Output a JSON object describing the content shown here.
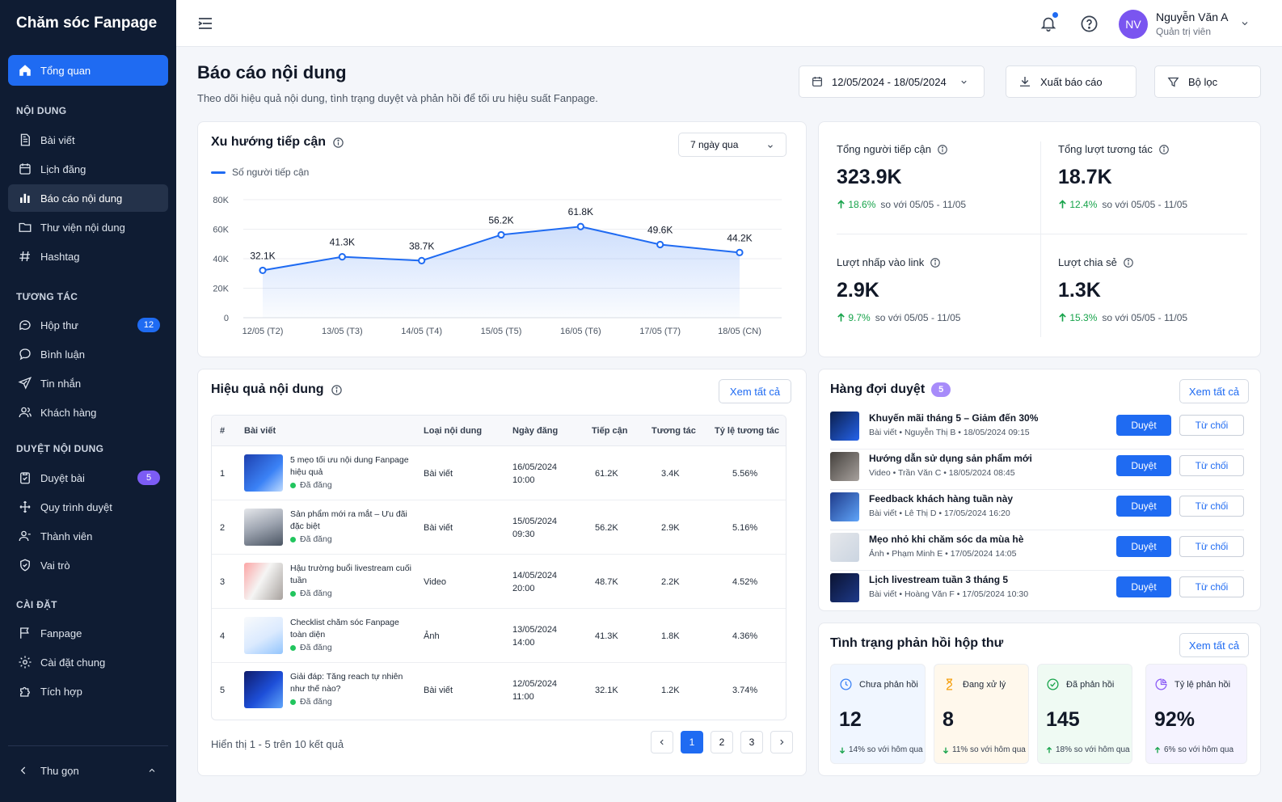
{
  "sidebar": {
    "brand": "Chăm sóc Fanpage",
    "top_item": "Tổng quan",
    "sections": [
      {
        "title": "NỘI DUNG",
        "items": [
          {
            "label": "Bài viết",
            "icon": "document-icon"
          },
          {
            "label": "Lịch đăng",
            "icon": "calendar-icon"
          },
          {
            "label": "Báo cáo nội dung",
            "icon": "bar-chart-icon",
            "active": true
          },
          {
            "label": "Thư viện nội dung",
            "icon": "folder-icon"
          },
          {
            "label": "Hashtag",
            "icon": "hashtag-icon"
          }
        ]
      },
      {
        "title": "TƯƠNG TÁC",
        "items": [
          {
            "label": "Hộp thư",
            "icon": "inbox-icon",
            "badge": "12"
          },
          {
            "label": "Bình luận",
            "icon": "comment-icon"
          },
          {
            "label": "Tin nhắn",
            "icon": "send-icon"
          },
          {
            "label": "Khách hàng",
            "icon": "users-icon"
          }
        ]
      },
      {
        "title": "DUYỆT NỘI DUNG",
        "items": [
          {
            "label": "Duyệt bài",
            "icon": "clipboard-check-icon",
            "badge": "5"
          },
          {
            "label": "Quy trình duyệt",
            "icon": "workflow-icon"
          },
          {
            "label": "Thành viên",
            "icon": "members-icon"
          },
          {
            "label": "Vai trò",
            "icon": "shield-icon"
          }
        ]
      },
      {
        "title": "CÀI ĐẶT",
        "items": [
          {
            "label": "Fanpage",
            "icon": "flag-icon"
          },
          {
            "label": "Cài đặt chung",
            "icon": "gear-icon"
          },
          {
            "label": "Tích hợp",
            "icon": "puzzle-icon"
          }
        ]
      }
    ],
    "collapse": "Thu gọn"
  },
  "header": {
    "user_initials": "NV",
    "user_name": "Nguyễn Văn A",
    "user_role": "Quản trị viên"
  },
  "page": {
    "title": "Báo cáo nội dung",
    "subtitle": "Theo dõi hiệu quả nội dung, tình trạng duyệt và phản hồi để tối ưu hiệu suất Fanpage.",
    "date_range": "12/05/2024 - 18/05/2024",
    "export": "Xuất báo cáo",
    "filter": "Bộ lọc"
  },
  "reach_card": {
    "title": "Xu hướng tiếp cận",
    "period": "7 ngày qua"
  },
  "chart_data": {
    "type": "area",
    "series": [
      {
        "name": "Số người tiếp cận",
        "values": [
          32.1,
          41.3,
          38.7,
          56.2,
          61.8,
          49.6,
          44.2
        ]
      }
    ],
    "categories": [
      "12/05 (T2)",
      "13/05 (T3)",
      "14/05 (T4)",
      "15/05 (T5)",
      "16/05 (T6)",
      "17/05 (T7)",
      "18/05 (CN)"
    ],
    "data_labels": [
      "32.1K",
      "41.3K",
      "38.7K",
      "56.2K",
      "61.8K",
      "49.6K",
      "44.2K"
    ],
    "yticks": [
      0,
      20,
      40,
      60,
      80
    ],
    "ytick_labels": [
      "0",
      "20K",
      "40K",
      "60K",
      "80K"
    ],
    "ylim": [
      0,
      80
    ],
    "grid": true,
    "color": "#1f6bf2"
  },
  "stats": [
    {
      "label": "Tổng người tiếp cận",
      "value": "323.9K",
      "delta": "18.6%",
      "compare": "so với 05/05 - 11/05"
    },
    {
      "label": "Tổng lượt tương tác",
      "value": "18.7K",
      "delta": "12.4%",
      "compare": "so với 05/05 - 11/05"
    },
    {
      "label": "Lượt nhấp vào link",
      "value": "2.9K",
      "delta": "9.7%",
      "compare": "so với 05/05 - 11/05"
    },
    {
      "label": "Lượt chia sẻ",
      "value": "1.3K",
      "delta": "15.3%",
      "compare": "so với 05/05 - 11/05"
    }
  ],
  "performance": {
    "title": "Hiệu quả nội dung",
    "view_all": "Xem tất cả",
    "columns": [
      "#",
      "Bài viết",
      "Loại nội dung",
      "Ngày đăng",
      "Tiếp cận",
      "Tương tác",
      "Tỷ lệ tương tác"
    ],
    "rows": [
      {
        "n": "1",
        "title": "5 mẹo tối ưu nội dung Fanpage hiệu quả",
        "status": "Đã đăng",
        "type": "Bài viết",
        "date": "16/05/2024",
        "time": "10:00",
        "reach": "61.2K",
        "eng": "3.4K",
        "rate": "5.56%"
      },
      {
        "n": "2",
        "title": "Sản phẩm mới ra mắt – Ưu đãi đặc biệt",
        "status": "Đã đăng",
        "type": "Bài viết",
        "date": "15/05/2024",
        "time": "09:30",
        "reach": "56.2K",
        "eng": "2.9K",
        "rate": "5.16%"
      },
      {
        "n": "3",
        "title": "Hậu trường buổi livestream cuối tuần",
        "status": "Đã đăng",
        "type": "Video",
        "date": "14/05/2024",
        "time": "20:00",
        "reach": "48.7K",
        "eng": "2.2K",
        "rate": "4.52%"
      },
      {
        "n": "4",
        "title": "Checklist chăm sóc Fanpage toàn diện",
        "status": "Đã đăng",
        "type": "Ảnh",
        "date": "13/05/2024",
        "time": "14:00",
        "reach": "41.3K",
        "eng": "1.8K",
        "rate": "4.36%"
      },
      {
        "n": "5",
        "title": "Giải đáp: Tăng reach tự nhiên như thế nào?",
        "status": "Đã đăng",
        "type": "Bài viết",
        "date": "12/05/2024",
        "time": "11:00",
        "reach": "32.1K",
        "eng": "1.2K",
        "rate": "3.74%"
      }
    ],
    "footer": "Hiển thị 1 - 5 trên 10 kết quả",
    "pages": [
      "1",
      "2",
      "3"
    ]
  },
  "queue": {
    "title": "Hàng đợi duyệt",
    "count": "5",
    "view_all": "Xem tất cả",
    "approve": "Duyệt",
    "reject": "Từ chối",
    "items": [
      {
        "title": "Khuyến mãi tháng 5 – Giảm đến 30%",
        "meta": "Bài viết  •  Nguyễn Thị B  •  18/05/2024 09:15"
      },
      {
        "title": "Hướng dẫn sử dụng sản phẩm mới",
        "meta": "Video  •  Trần Văn C  •  18/05/2024 08:45"
      },
      {
        "title": "Feedback khách hàng tuần này",
        "meta": "Bài viết  •  Lê Thị D  •  17/05/2024 16:20"
      },
      {
        "title": "Mẹo nhỏ khi chăm sóc da mùa hè",
        "meta": "Ảnh  •  Phạm Minh E  •  17/05/2024 14:05"
      },
      {
        "title": "Lịch livestream tuần 3 tháng 5",
        "meta": "Bài viết  •  Hoàng Văn F  •  17/05/2024 10:30"
      }
    ]
  },
  "inbox": {
    "title": "Tình trạng phản hồi hộp thư",
    "view_all": "Xem tất cả",
    "boxes": [
      {
        "label": "Chưa phản hồi",
        "value": "12",
        "delta": "14% so với hôm qua",
        "dir": "down",
        "bg": "#f0f6ff"
      },
      {
        "label": "Đang xử lý",
        "value": "8",
        "delta": "11% so với hôm qua",
        "dir": "down",
        "bg": "#fff8ec"
      },
      {
        "label": "Đã phản hồi",
        "value": "145",
        "delta": "18% so với hôm qua",
        "dir": "up",
        "bg": "#effaf3"
      },
      {
        "label": "Tỷ lệ phản hồi",
        "value": "92%",
        "delta": "6% so với hôm qua",
        "dir": "up",
        "bg": "#f5f3ff"
      }
    ]
  }
}
